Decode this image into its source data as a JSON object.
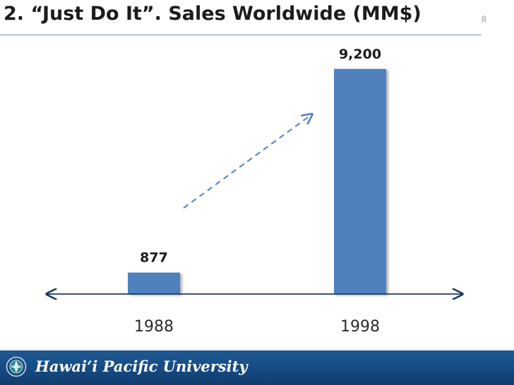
{
  "slide": {
    "title": "2. “Just Do It”.  Sales Worldwide (MM$)",
    "slide_number": "8"
  },
  "footer": {
    "institution": "Hawai‘i Pacific University",
    "seal_icon": "university-seal-icon"
  },
  "colors": {
    "bar": "#4f81bd",
    "trend_arrow": "#4f81bd",
    "axis": "#1f3a5f",
    "footer_bg": "#17508a"
  },
  "chart_data": {
    "type": "bar",
    "title": "",
    "categories": [
      "1988",
      "1998"
    ],
    "values": [
      877,
      9200
    ],
    "data_labels": [
      "877",
      "9,200"
    ],
    "xlabel": "",
    "ylabel": "",
    "ylim": [
      0,
      10000
    ],
    "grid": false,
    "legend": "none",
    "annotations": [
      "dashed trend arrow from 1988 bar to 1998 bar"
    ]
  }
}
